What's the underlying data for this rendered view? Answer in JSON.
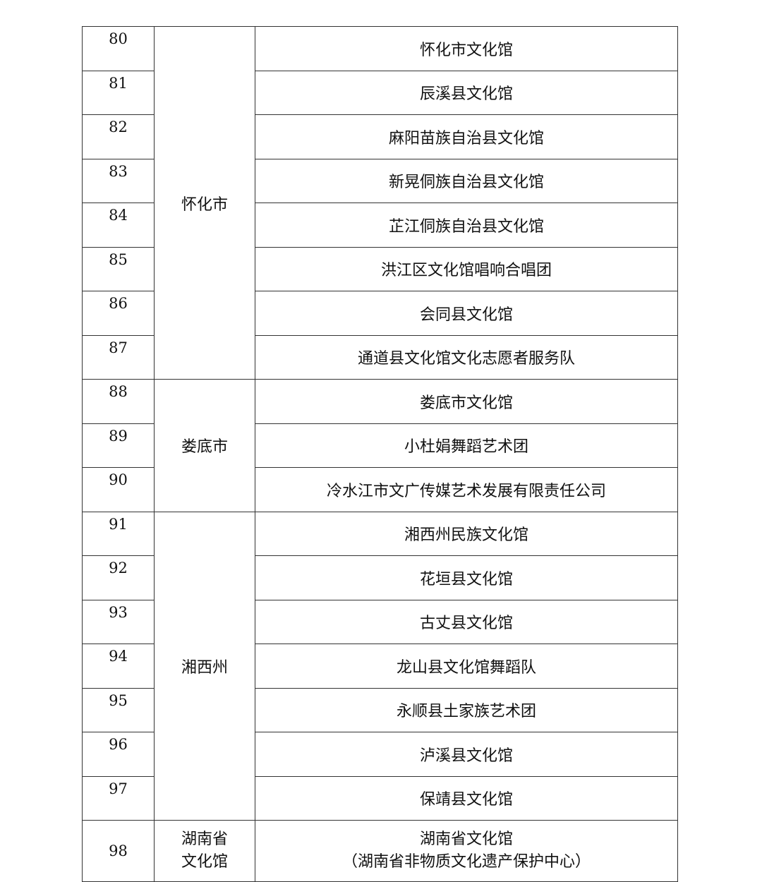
{
  "groups": [
    {
      "city": "怀化市",
      "rows": [
        {
          "no": "80",
          "name": "怀化市文化馆"
        },
        {
          "no": "81",
          "name": "辰溪县文化馆"
        },
        {
          "no": "82",
          "name": "麻阳苗族自治县文化馆"
        },
        {
          "no": "83",
          "name": "新晃侗族自治县文化馆"
        },
        {
          "no": "84",
          "name": "芷江侗族自治县文化馆"
        },
        {
          "no": "85",
          "name": "洪江区文化馆唱响合唱团"
        },
        {
          "no": "86",
          "name": "会同县文化馆"
        },
        {
          "no": "87",
          "name": "通道县文化馆文化志愿者服务队"
        }
      ]
    },
    {
      "city": "娄底市",
      "rows": [
        {
          "no": "88",
          "name": "娄底市文化馆"
        },
        {
          "no": "89",
          "name": "小杜娟舞蹈艺术团"
        },
        {
          "no": "90",
          "name": "冷水江市文广传媒艺术发展有限责任公司"
        }
      ]
    },
    {
      "city": "湘西州",
      "rows": [
        {
          "no": "91",
          "name": "湘西州民族文化馆"
        },
        {
          "no": "92",
          "name": "花垣县文化馆"
        },
        {
          "no": "93",
          "name": "古丈县文化馆"
        },
        {
          "no": "94",
          "name": "龙山县文化馆舞蹈队"
        },
        {
          "no": "95",
          "name": "永顺县土家族艺术团"
        },
        {
          "no": "96",
          "name": "泸溪县文化馆"
        },
        {
          "no": "97",
          "name": "保靖县文化馆"
        }
      ]
    }
  ],
  "last": {
    "no": "98",
    "city_line1": "湖南省",
    "city_line2": "文化馆",
    "name_line1": "湖南省文化馆",
    "name_line2": "（湖南省非物质文化遗产保护中心）"
  }
}
